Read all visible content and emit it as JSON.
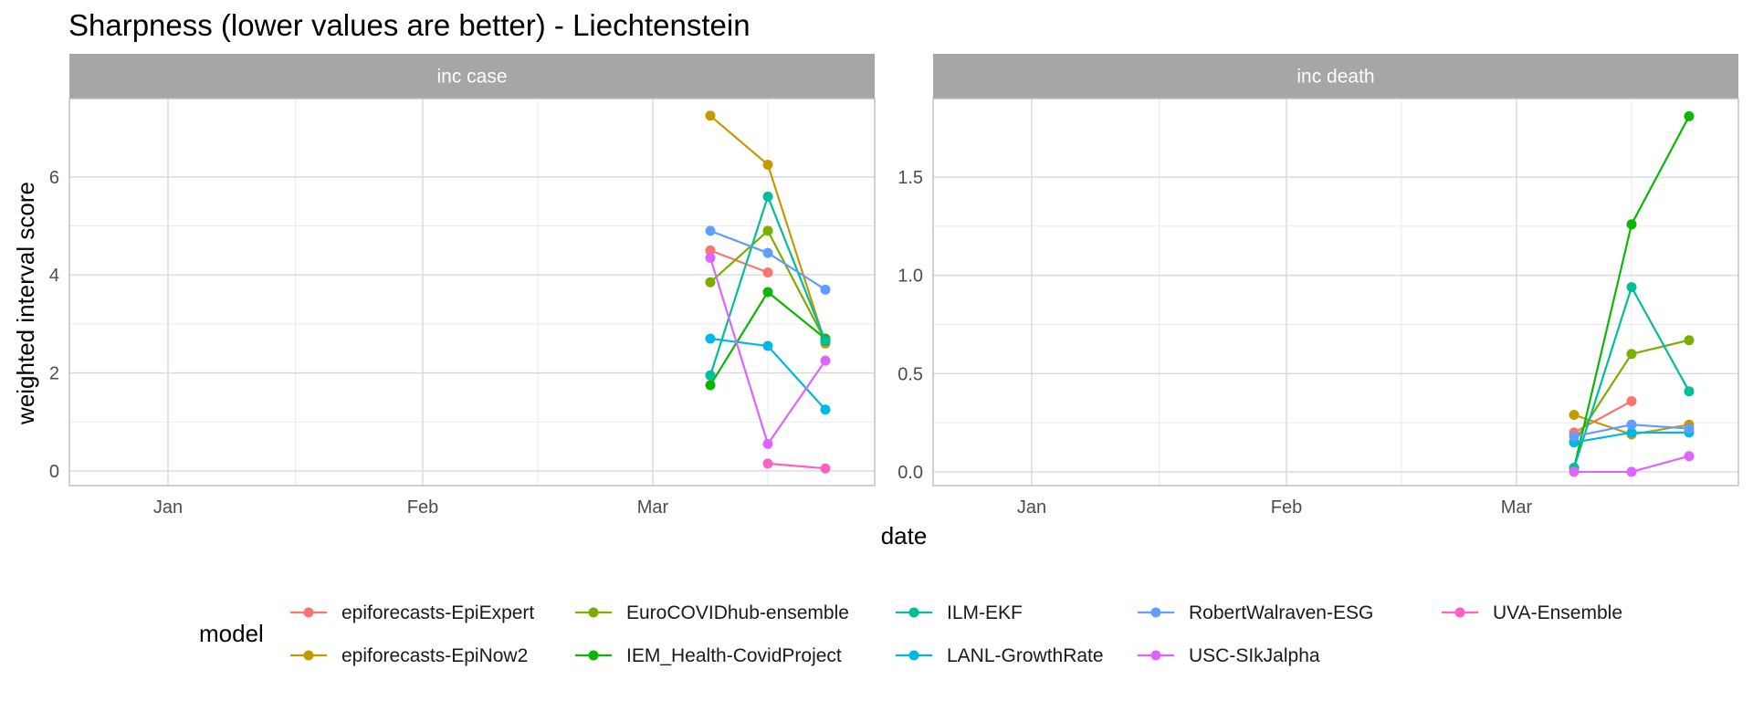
{
  "title": "Sharpness (lower values are better) - Liechtenstein",
  "xlabel": "date",
  "ylabel": "weighted interval score",
  "legend_title": "model",
  "legend_position": "bottom",
  "chart_data": {
    "type": "line",
    "x_axis": {
      "type": "date",
      "range": [
        "2020-12-20",
        "2021-03-28"
      ],
      "tick_dates": [
        "2021-01-01",
        "2021-02-01",
        "2021-03-01"
      ],
      "tick_labels": [
        "Jan",
        "Feb",
        "Mar"
      ]
    },
    "grid": true,
    "x": [
      "2021-03-08",
      "2021-03-15",
      "2021-03-22"
    ],
    "series": [
      {
        "name": "epiforecasts-EpiExpert",
        "color": "#F8766D"
      },
      {
        "name": "epiforecasts-EpiNow2",
        "color": "#C49A00"
      },
      {
        "name": "EuroCOVIDhub-ensemble",
        "color": "#7CAE00"
      },
      {
        "name": "IEM_Health-CovidProject",
        "color": "#0CB702"
      },
      {
        "name": "ILM-EKF",
        "color": "#00BE99"
      },
      {
        "name": "LANL-GrowthRate",
        "color": "#00B8E7"
      },
      {
        "name": "RobertWalraven-ESG",
        "color": "#619CFF"
      },
      {
        "name": "USC-SIkJalpha",
        "color": "#DE64FF"
      },
      {
        "name": "UVA-Ensemble",
        "color": "#FF61C3"
      }
    ],
    "panels": [
      {
        "label": "inc case",
        "ylim": [
          -0.3,
          7.6
        ],
        "y_ticks": [
          0,
          2,
          4,
          6
        ],
        "y_tick_labels": [
          "0",
          "2",
          "4",
          "6"
        ],
        "values": {
          "epiforecasts-EpiExpert": [
            4.5,
            4.05,
            null
          ],
          "epiforecasts-EpiNow2": [
            7.25,
            6.25,
            2.6
          ],
          "EuroCOVIDhub-ensemble": [
            3.85,
            4.9,
            2.65
          ],
          "IEM_Health-CovidProject": [
            1.75,
            3.65,
            2.7
          ],
          "ILM-EKF": [
            1.95,
            5.6,
            2.65
          ],
          "LANL-GrowthRate": [
            2.7,
            2.55,
            1.25
          ],
          "RobertWalraven-ESG": [
            4.9,
            4.45,
            3.7
          ],
          "USC-SIkJalpha": [
            4.35,
            0.55,
            2.25
          ],
          "UVA-Ensemble": [
            null,
            0.15,
            0.05
          ]
        }
      },
      {
        "label": "inc death",
        "ylim": [
          -0.07,
          1.9
        ],
        "y_ticks": [
          0.0,
          0.5,
          1.0,
          1.5
        ],
        "y_tick_labels": [
          "0.0",
          "0.5",
          "1.0",
          "1.5"
        ],
        "values": {
          "epiforecasts-EpiExpert": [
            0.2,
            0.36,
            null
          ],
          "epiforecasts-EpiNow2": [
            0.29,
            0.19,
            0.24
          ],
          "EuroCOVIDhub-ensemble": [
            0.15,
            0.6,
            0.67
          ],
          "IEM_Health-CovidProject": [
            0.02,
            1.26,
            1.81
          ],
          "ILM-EKF": [
            0.02,
            0.94,
            0.41
          ],
          "LANL-GrowthRate": [
            0.15,
            0.2,
            0.2
          ],
          "RobertWalraven-ESG": [
            0.18,
            0.24,
            0.22
          ],
          "USC-SIkJalpha": [
            0.0,
            0.0,
            0.08
          ],
          "UVA-Ensemble": [
            null,
            null,
            null
          ]
        }
      }
    ]
  }
}
